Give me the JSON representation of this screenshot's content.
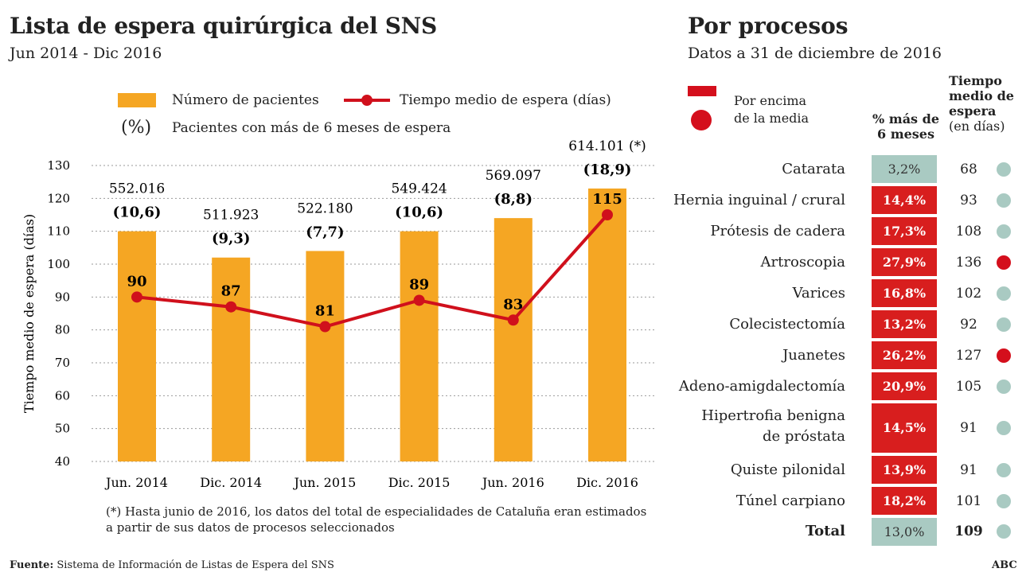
{
  "left": {
    "title": "Lista de espera quirúrgica del SNS",
    "subtitle": "Jun 2014 - Dic 2016",
    "legend": {
      "bars": "Número de pacientes",
      "line": "Tiempo medio de espera (días)",
      "pct_symbol": "(%)",
      "pct": "Pacientes con más de 6 meses  de espera"
    },
    "footnote_1": "(*) Hasta junio de 2016, los datos del total de especialidades de Cataluña eran estimados",
    "footnote_2": "a partir de sus datos de procesos seleccionados",
    "source_label": "Fuente:",
    "source": " Sistema de Información de Listas de Espera del SNS"
  },
  "chart_data": {
    "type": "bar",
    "title": "Lista de espera quirúrgica del SNS",
    "subtitle": "Jun 2014 - Dic 2016",
    "ylabel": "Tiempo medio de espera (días)",
    "xlabel": "",
    "ylim": [
      40,
      130
    ],
    "yticks": [
      40,
      50,
      60,
      70,
      80,
      90,
      100,
      110,
      120,
      130
    ],
    "grid": true,
    "categories": [
      "Jun. 2014",
      "Dic. 2014",
      "Jun. 2015",
      "Dic. 2015",
      "Jun. 2016",
      "Dic. 2016"
    ],
    "bar_heights_axis_units": [
      110,
      102,
      104,
      110,
      114,
      123
    ],
    "patients_labels": [
      "552.016",
      "511.923",
      "522.180",
      "549.424",
      "569.097",
      "614.101 (*)"
    ],
    "pct_labels": [
      "(10,6)",
      "(9,3)",
      "(7,7)",
      "(10,6)",
      "(8,8)",
      "(18,9)"
    ],
    "series": [
      {
        "name": "Número de pacientes",
        "type": "bar",
        "values": [
          552016,
          511923,
          522180,
          549424,
          569097,
          614101
        ]
      },
      {
        "name": "Tiempo medio de espera (días)",
        "type": "line",
        "values": [
          90,
          87,
          81,
          89,
          83,
          115
        ]
      },
      {
        "name": "Pacientes con más de 6 meses  de espera",
        "values": [
          10.6,
          9.3,
          7.7,
          10.6,
          8.8,
          18.9
        ]
      }
    ],
    "colors": {
      "bar": "#f5a623",
      "line": "#d0101c"
    }
  },
  "right": {
    "title": "Por procesos",
    "subtitle": "Datos a 31 de diciembre de 2016",
    "legend_1": "Por encima",
    "legend_2": "de la media",
    "col_pct_1": "% más de",
    "col_pct_2": "6 meses",
    "col_days_1": "Tiempo",
    "col_days_2": "medio de",
    "col_days_3": "espera",
    "col_days_4": "(en días)",
    "rows": [
      {
        "label": "Catarata",
        "pct": "3,2%",
        "days": "68",
        "high_pct": false,
        "high_days": false
      },
      {
        "label": "Hernia inguinal / crural",
        "pct": "14,4%",
        "days": "93",
        "high_pct": true,
        "high_days": false
      },
      {
        "label": "Prótesis de cadera",
        "pct": "17,3%",
        "days": "108",
        "high_pct": true,
        "high_days": false
      },
      {
        "label": "Artroscopia",
        "pct": "27,9%",
        "days": "136",
        "high_pct": true,
        "high_days": true
      },
      {
        "label": "Varices",
        "pct": "16,8%",
        "days": "102",
        "high_pct": true,
        "high_days": false
      },
      {
        "label": "Colecistectomía",
        "pct": "13,2%",
        "days": "92",
        "high_pct": true,
        "high_days": false
      },
      {
        "label": "Juanetes",
        "pct": "26,2%",
        "days": "127",
        "high_pct": true,
        "high_days": true
      },
      {
        "label": "Adeno-amigdalectomía",
        "pct": "20,9%",
        "days": "105",
        "high_pct": true,
        "high_days": false
      },
      {
        "label": "Hipertrofia benigna",
        "label2": "de próstata",
        "pct": "14,5%",
        "days": "91",
        "high_pct": true,
        "high_days": false
      },
      {
        "label": "Quiste pilonidal",
        "pct": "13,9%",
        "days": "91",
        "high_pct": true,
        "high_days": false
      },
      {
        "label": "Túnel carpiano",
        "pct": "18,2%",
        "days": "101",
        "high_pct": true,
        "high_days": false
      }
    ],
    "total": {
      "label": "Total",
      "pct": "13,0%",
      "days": "109"
    },
    "brand": "ABC"
  }
}
